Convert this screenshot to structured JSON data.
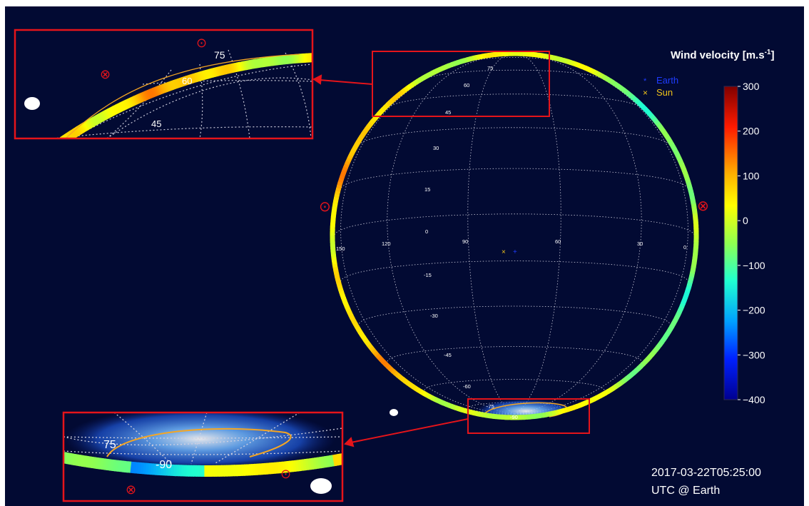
{
  "colorbar": {
    "title": "Wind velocity [m.s",
    "title_exp": "-1",
    "title_end": "]",
    "ticks": [
      "300",
      "200",
      "100",
      "0",
      "−100",
      "−200",
      "−300",
      "−400"
    ],
    "range": [
      -400,
      300
    ]
  },
  "legend": {
    "earth_label": "Earth",
    "sun_label": "Sun",
    "earth_color": "#1f3cff",
    "sun_color": "#f0c419"
  },
  "timestamp": {
    "line1": "2017-03-22T05:25:00",
    "line2": "UTC @ Earth"
  },
  "grid": {
    "latitudes": [
      "75",
      "60",
      "45",
      "30",
      "15",
      "0",
      "-15",
      "-30",
      "-45",
      "-60",
      "-75",
      "-90"
    ],
    "longitudes": [
      "150",
      "120",
      "90",
      "60",
      "30",
      "0"
    ]
  },
  "inset_top": {
    "labels": [
      "75",
      "60",
      "45"
    ]
  },
  "inset_bottom": {
    "labels": [
      "75",
      "-90"
    ]
  },
  "colors": {
    "background": "#020a33",
    "frame": "#e5141a",
    "auroral_oval": "#f5a623"
  },
  "symbols": {
    "out_of_plane": "⊙",
    "into_plane": "⊗"
  }
}
